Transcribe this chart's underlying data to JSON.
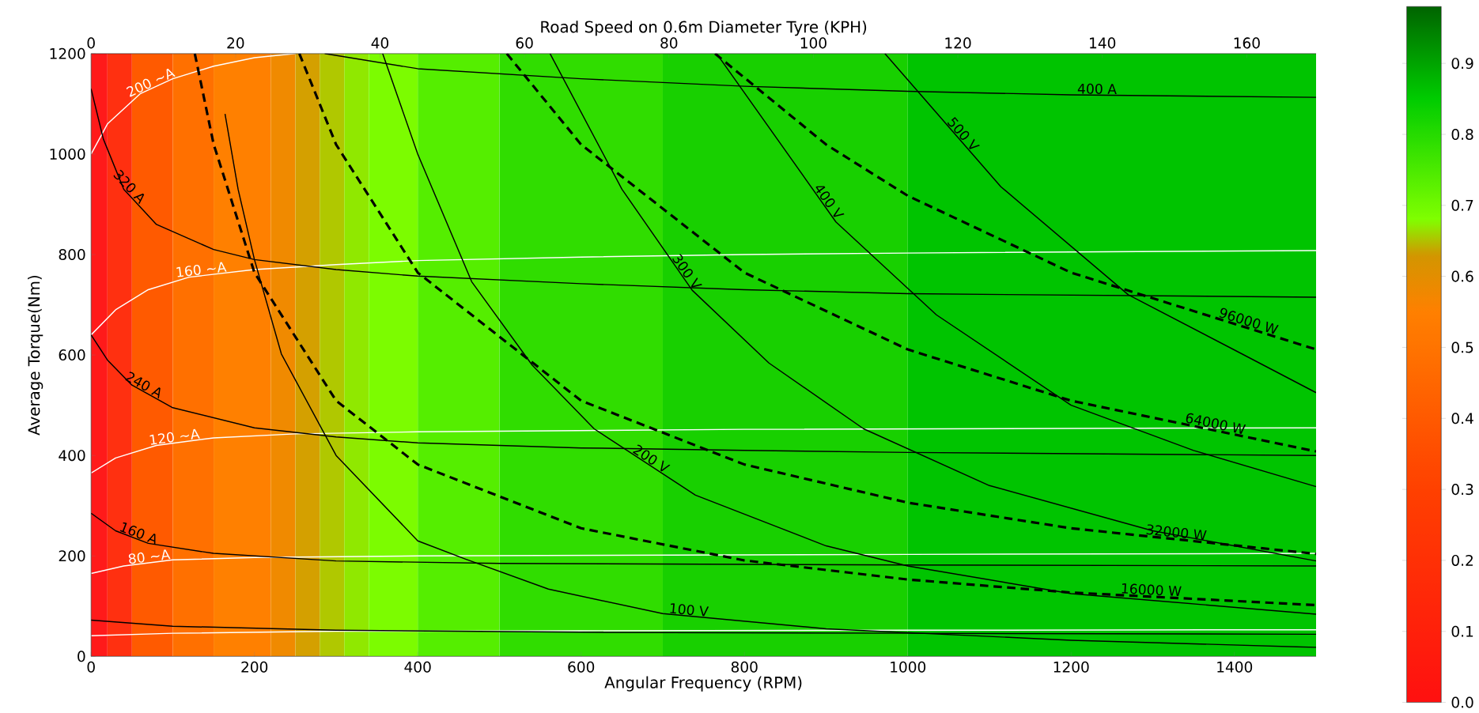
{
  "chart_data": {
    "type": "line",
    "xlabel": "Angular Frequency (RPM)",
    "ylabel": "Average Torque(Nm)",
    "x2label": "Road Speed on 0.6m Diameter Tyre (KPH)",
    "xlim": [
      0,
      1500
    ],
    "ylim": [
      0,
      1200
    ],
    "x2lim": [
      0,
      169.6
    ],
    "xticks": [
      0,
      200,
      400,
      600,
      800,
      1000,
      1200,
      1400
    ],
    "yticks": [
      0,
      200,
      400,
      600,
      800,
      1000,
      1200
    ],
    "x2ticks": [
      0,
      20,
      40,
      60,
      80,
      100,
      120,
      140,
      160
    ],
    "clim": [
      0,
      0.98
    ],
    "cticks": [
      {
        "value": 0,
        "label": "0.0"
      },
      0.1,
      0.2,
      0.3,
      0.4,
      0.5,
      0.6,
      0.7,
      0.8,
      0.9
    ],
    "bands": [
      {
        "axis": "x",
        "from": 0,
        "to": 20,
        "color": "#ff1a1a"
      },
      {
        "axis": "x",
        "from": 20,
        "to": 50,
        "color": "#ff3010"
      },
      {
        "axis": "x",
        "from": 50,
        "to": 100,
        "color": "#ff5a00"
      },
      {
        "axis": "x",
        "from": 100,
        "to": 150,
        "color": "#ff7000"
      },
      {
        "axis": "x",
        "from": 150,
        "to": 220,
        "color": "#ff8000"
      },
      {
        "axis": "x",
        "from": 220,
        "to": 250,
        "color": "#f08a00"
      },
      {
        "axis": "x",
        "from": 250,
        "to": 280,
        "color": "#d4a000"
      },
      {
        "axis": "x",
        "from": 280,
        "to": 310,
        "color": "#b0c800"
      },
      {
        "axis": "x",
        "from": 310,
        "to": 340,
        "color": "#90e800"
      },
      {
        "axis": "x",
        "from": 340,
        "to": 400,
        "color": "#7cfc00"
      },
      {
        "axis": "x",
        "from": 400,
        "to": 500,
        "color": "#55ee00"
      },
      {
        "axis": "x",
        "from": 500,
        "to": 700,
        "color": "#30dd00"
      },
      {
        "axis": "x",
        "from": 700,
        "to": 1000,
        "color": "#18d000"
      },
      {
        "axis": "x",
        "from": 1000,
        "to": 1500,
        "color": "#00c400"
      }
    ],
    "series": [
      {
        "name": "200 ~A",
        "color": "#ffffff",
        "line_style": "solid",
        "x": [
          0,
          20,
          60,
          100,
          150,
          200,
          250
        ],
        "values": [
          1000,
          1060,
          1120,
          1150,
          1175,
          1192,
          1200
        ]
      },
      {
        "name": "160 ~A",
        "color": "#ffffff",
        "line_style": "solid",
        "x": [
          0,
          30,
          70,
          120,
          200,
          300,
          400,
          600,
          800,
          1000,
          1500
        ],
        "values": [
          640,
          690,
          730,
          755,
          770,
          780,
          788,
          795,
          800,
          803,
          808
        ]
      },
      {
        "name": "120 ~A",
        "color": "#ffffff",
        "line_style": "solid",
        "x": [
          0,
          30,
          80,
          150,
          250,
          400,
          800,
          1500
        ],
        "values": [
          365,
          395,
          420,
          435,
          443,
          447,
          452,
          455
        ]
      },
      {
        "name": "80 ~A",
        "color": "#ffffff",
        "line_style": "solid",
        "x": [
          0,
          40,
          100,
          200,
          400,
          1000,
          1500
        ],
        "values": [
          165,
          180,
          192,
          197,
          200,
          203,
          205
        ]
      },
      {
        "color": "#ffffff",
        "line_style": "solid",
        "x": [
          0,
          100,
          300,
          600,
          1000,
          1500
        ],
        "values": [
          41,
          46,
          50,
          51,
          52,
          53
        ]
      },
      {
        "name": "400 A",
        "color": "#000000",
        "line_style": "solid",
        "x": [
          286,
          400,
          600,
          800,
          1000,
          1200,
          1500
        ],
        "values": [
          1200,
          1170,
          1150,
          1135,
          1125,
          1118,
          1113
        ]
      },
      {
        "name": "320 A",
        "color": "#000000",
        "line_style": "solid",
        "x": [
          0,
          15,
          40,
          80,
          150,
          200,
          300,
          400,
          600,
          800,
          1000,
          1500
        ],
        "values": [
          1130,
          1030,
          930,
          860,
          810,
          790,
          770,
          757,
          742,
          730,
          722,
          715
        ]
      },
      {
        "name": "240 A",
        "color": "#000000",
        "line_style": "solid",
        "x": [
          0,
          20,
          50,
          100,
          200,
          300,
          400,
          600,
          800,
          1000,
          1500
        ],
        "values": [
          640,
          590,
          540,
          495,
          455,
          437,
          425,
          415,
          410,
          406,
          400
        ]
      },
      {
        "name": "160 A",
        "color": "#000000",
        "line_style": "solid",
        "x": [
          0,
          30,
          70,
          150,
          300,
          500,
          1000,
          1500
        ],
        "values": [
          285,
          250,
          225,
          205,
          190,
          185,
          182,
          180
        ]
      },
      {
        "color": "#000000",
        "line_style": "solid",
        "x": [
          0,
          100,
          300,
          600,
          1000,
          1500
        ],
        "values": [
          72,
          60,
          52,
          48,
          46,
          44
        ]
      },
      {
        "name": "100 V",
        "color": "#000000",
        "line_style": "solid",
        "x": [
          164,
          180,
          200,
          233,
          300,
          400,
          458,
          560,
          700,
          900,
          1200,
          1500
        ],
        "values": [
          1080,
          930,
          790,
          602,
          400,
          230,
          194,
          134,
          85,
          55,
          32,
          18
        ]
      },
      {
        "name": "200 V",
        "color": "#000000",
        "line_style": "solid",
        "x": [
          357,
          400,
          466,
          540,
          616,
          740,
          900,
          1000,
          1200,
          1500
        ],
        "values": [
          1200,
          1000,
          746,
          580,
          453,
          321,
          220,
          180,
          125,
          84
        ]
      },
      {
        "name": "300 V",
        "color": "#000000",
        "line_style": "solid",
        "x": [
          562,
          650,
          736,
          830,
          946,
          1100,
          1300,
          1500
        ],
        "values": [
          1200,
          930,
          729,
          584,
          453,
          340,
          250,
          190
        ]
      },
      {
        "name": "400 V",
        "color": "#000000",
        "line_style": "solid",
        "x": [
          766,
          912,
          1035,
          1200,
          1350,
          1500
        ],
        "values": [
          1200,
          865,
          680,
          500,
          410,
          338
        ]
      },
      {
        "name": "500 V",
        "color": "#000000",
        "line_style": "solid",
        "x": [
          972,
          1114,
          1270,
          1400,
          1500
        ],
        "values": [
          1200,
          935,
          720,
          610,
          525
        ]
      },
      {
        "name": "16000 W",
        "color": "#000000",
        "line_style": "dashed",
        "x": [
          127,
          150,
          200,
          300,
          400,
          600,
          800,
          1000,
          1200,
          1500
        ],
        "values": [
          1200,
          1020,
          764,
          509,
          382,
          255,
          191,
          153,
          127,
          102
        ]
      },
      {
        "name": "32000 W",
        "color": "#000000",
        "line_style": "dashed",
        "x": [
          255,
          300,
          400,
          600,
          800,
          1000,
          1200,
          1500
        ],
        "values": [
          1200,
          1019,
          764,
          509,
          382,
          306,
          255,
          204
        ]
      },
      {
        "name": "64000 W",
        "color": "#000000",
        "line_style": "dashed",
        "x": [
          509,
          600,
          800,
          1000,
          1200,
          1500
        ],
        "values": [
          1200,
          1019,
          764,
          611,
          509,
          408
        ]
      },
      {
        "name": "96000 W",
        "color": "#000000",
        "line_style": "dashed",
        "x": [
          764,
          900,
          1000,
          1200,
          1500
        ],
        "values": [
          1200,
          1019,
          917,
          764,
          611
        ]
      }
    ]
  }
}
